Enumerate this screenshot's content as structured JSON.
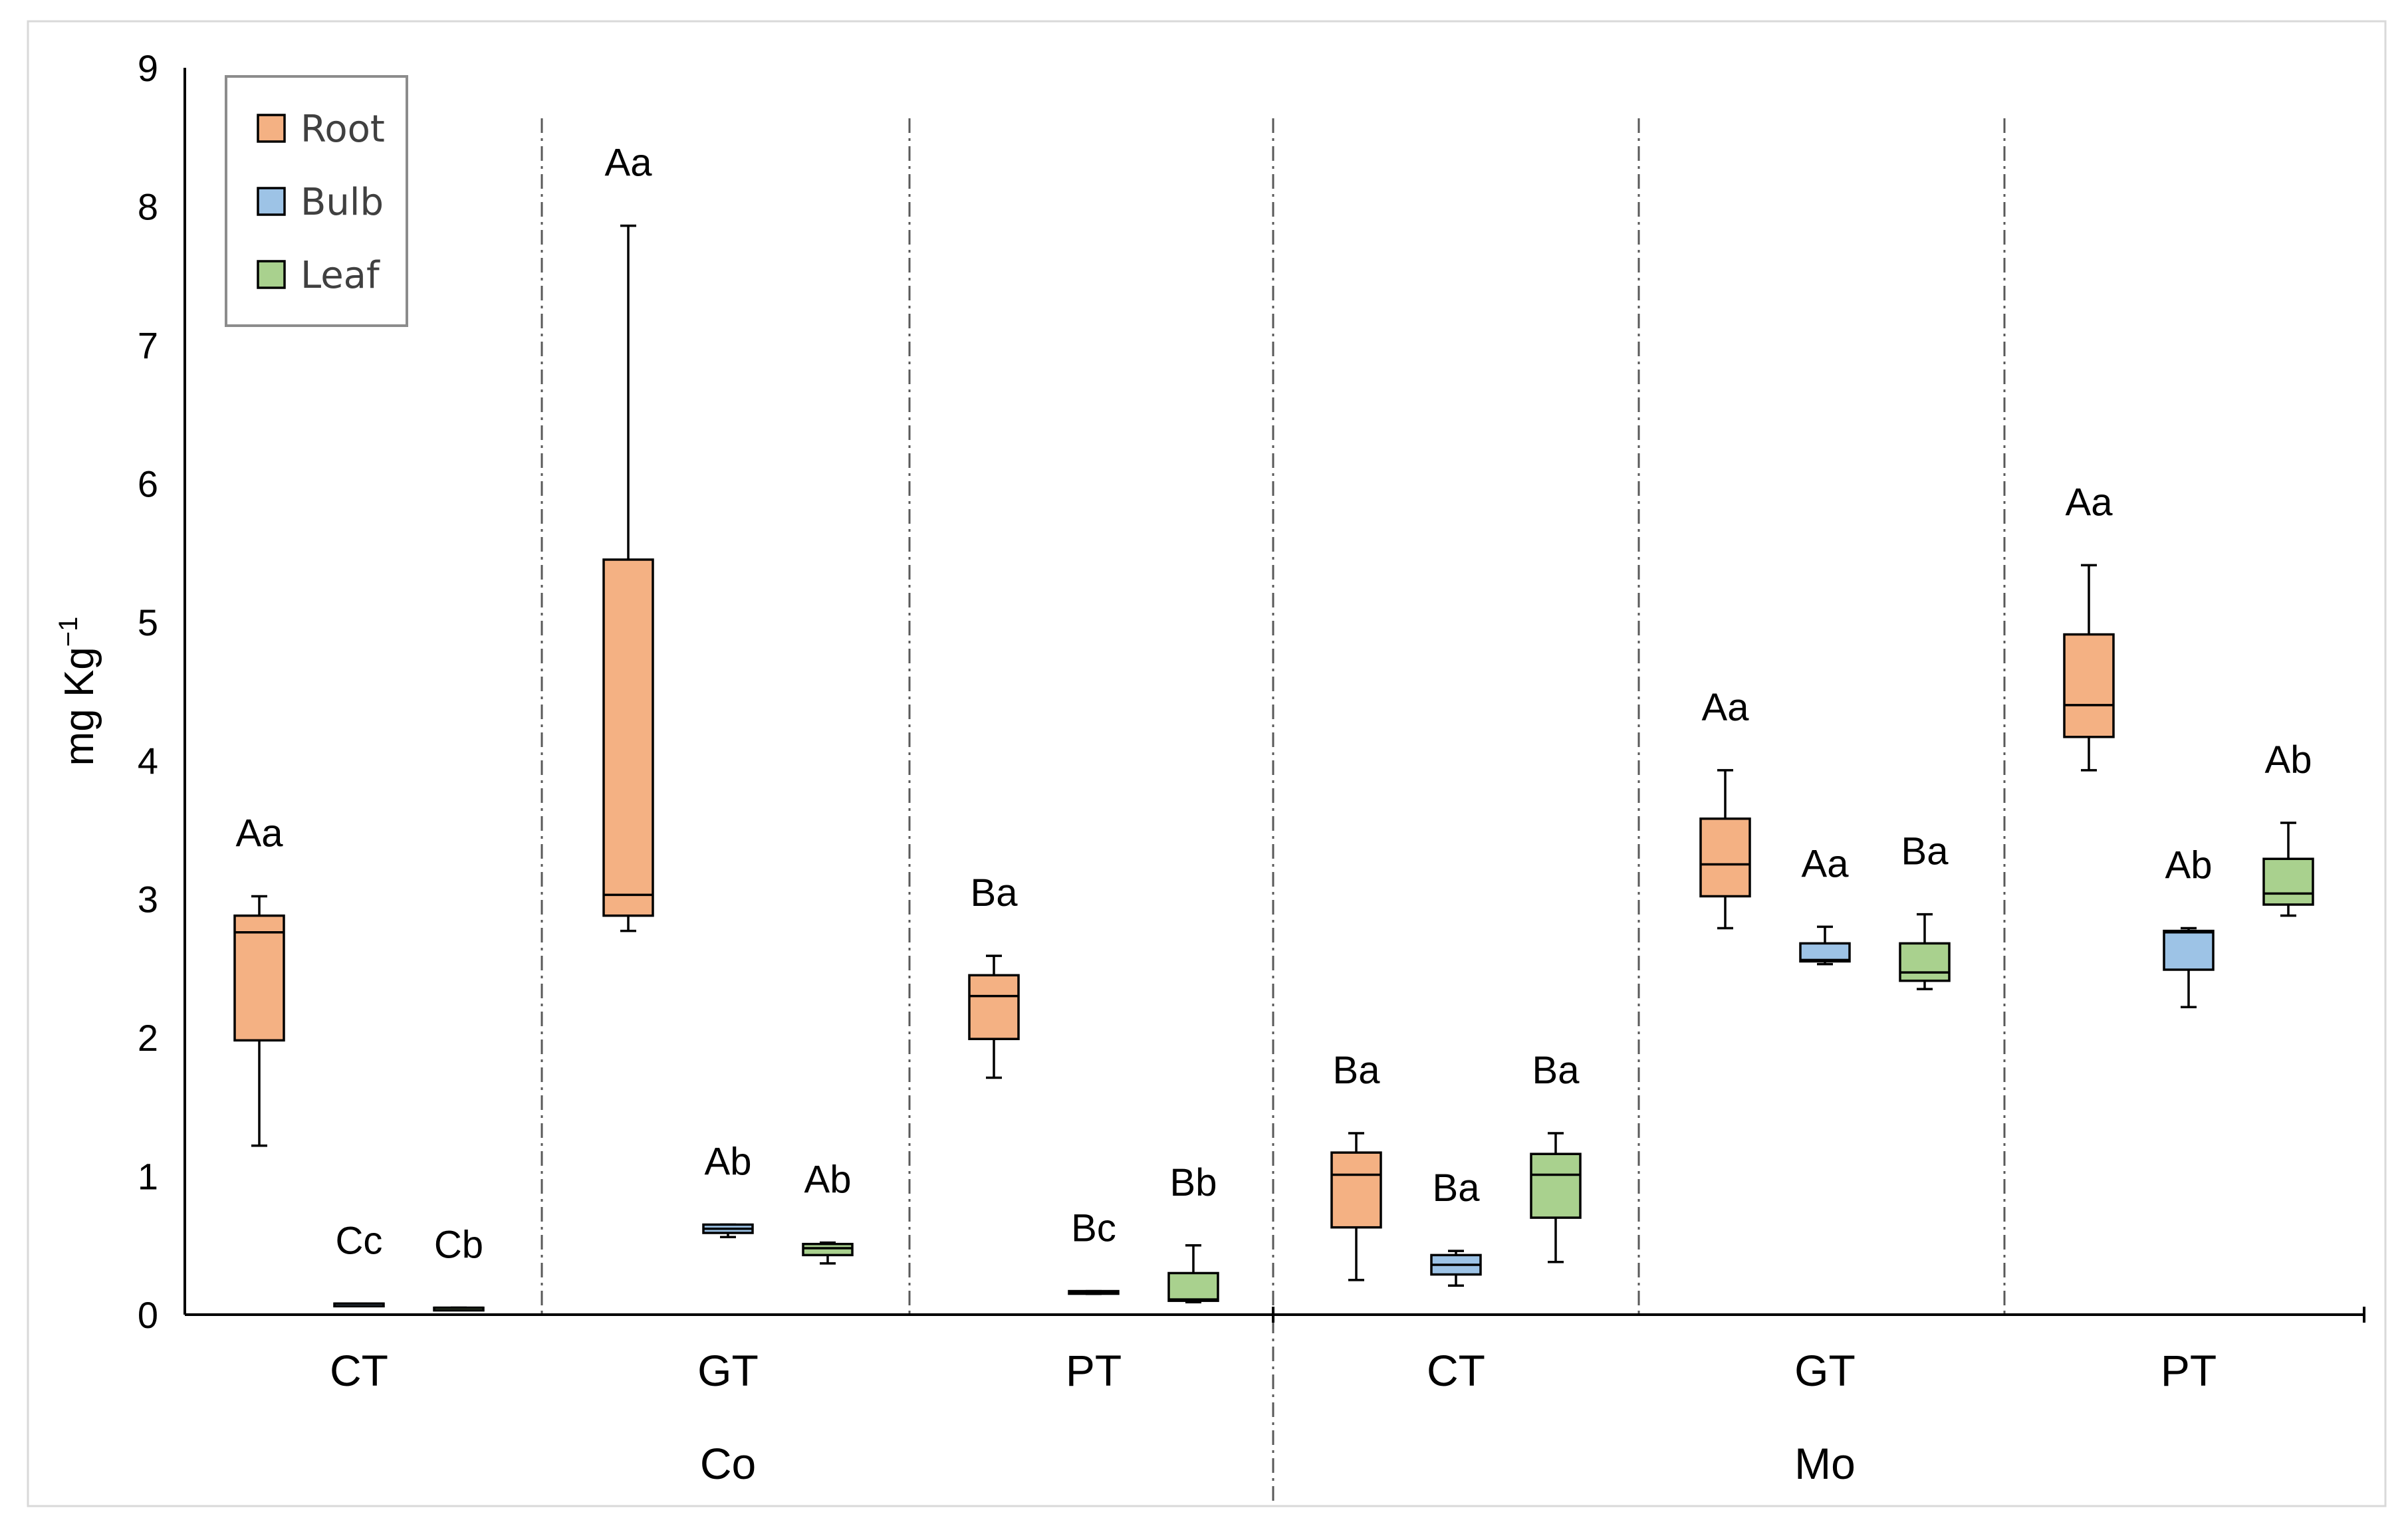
{
  "chart_data": {
    "type": "boxplot",
    "ylabel": "mg Kg",
    "ylabel_superscript": "−1",
    "ylim": [
      0,
      9
    ],
    "yticks": [
      "0",
      "1",
      "2",
      "3",
      "4",
      "5",
      "6",
      "7",
      "8",
      "9"
    ],
    "legend": {
      "position": "top-left",
      "entries": [
        {
          "name": "Root",
          "color": "#F4B183"
        },
        {
          "name": "Bulb",
          "color": "#9DC3E6"
        },
        {
          "name": "Leaf",
          "color": "#A9D18E"
        }
      ]
    },
    "group_labels": [
      "Co",
      "Mo"
    ],
    "treatments": [
      {
        "label": "CT",
        "group": "Co",
        "boxes": [
          {
            "series": "Root",
            "min": 1.22,
            "q1": 1.98,
            "median": 2.76,
            "q3": 2.88,
            "max": 3.02,
            "annotation": "Aa"
          },
          {
            "series": "Bulb",
            "min": 0.08,
            "q1": 0.08,
            "median": 0.08,
            "q3": 0.08,
            "max": 0.08,
            "annotation": "Cc"
          },
          {
            "series": "Leaf",
            "min": 0.05,
            "q1": 0.05,
            "median": 0.05,
            "q3": 0.05,
            "max": 0.05,
            "annotation": "Cb"
          }
        ]
      },
      {
        "label": "GT",
        "group": "Co",
        "boxes": [
          {
            "series": "Root",
            "min": 2.77,
            "q1": 2.88,
            "median": 3.03,
            "q3": 5.45,
            "max": 7.86,
            "annotation": "Aa"
          },
          {
            "series": "Bulb",
            "min": 0.56,
            "q1": 0.59,
            "median": 0.62,
            "q3": 0.65,
            "max": 0.65,
            "annotation": "Ab"
          },
          {
            "series": "Leaf",
            "min": 0.37,
            "q1": 0.43,
            "median": 0.48,
            "q3": 0.51,
            "max": 0.52,
            "annotation": "Ab"
          }
        ]
      },
      {
        "label": "PT",
        "group": "Co",
        "boxes": [
          {
            "series": "Root",
            "min": 1.71,
            "q1": 1.99,
            "median": 2.3,
            "q3": 2.45,
            "max": 2.59,
            "annotation": "Ba"
          },
          {
            "series": "Bulb",
            "min": 0.15,
            "q1": 0.16,
            "median": 0.16,
            "q3": 0.17,
            "max": 0.17,
            "annotation": "Bc"
          },
          {
            "series": "Leaf",
            "min": 0.09,
            "q1": 0.1,
            "median": 0.11,
            "q3": 0.3,
            "max": 0.5,
            "annotation": "Bb"
          }
        ]
      },
      {
        "label": "CT",
        "group": "Mo",
        "boxes": [
          {
            "series": "Root",
            "min": 0.25,
            "q1": 0.63,
            "median": 1.01,
            "q3": 1.17,
            "max": 1.31,
            "annotation": "Ba"
          },
          {
            "series": "Bulb",
            "min": 0.21,
            "q1": 0.29,
            "median": 0.36,
            "q3": 0.43,
            "max": 0.46,
            "annotation": "Ba"
          },
          {
            "series": "Leaf",
            "min": 0.38,
            "q1": 0.7,
            "median": 1.01,
            "q3": 1.16,
            "max": 1.31,
            "annotation": "Ba"
          }
        ]
      },
      {
        "label": "GT",
        "group": "Mo",
        "boxes": [
          {
            "series": "Root",
            "min": 2.79,
            "q1": 3.02,
            "median": 3.25,
            "q3": 3.58,
            "max": 3.93,
            "annotation": "Aa"
          },
          {
            "series": "Bulb",
            "min": 2.53,
            "q1": 2.55,
            "median": 2.56,
            "q3": 2.68,
            "max": 2.8,
            "annotation": "Aa"
          },
          {
            "series": "Leaf",
            "min": 2.35,
            "q1": 2.41,
            "median": 2.47,
            "q3": 2.68,
            "max": 2.89,
            "annotation": "Ba"
          }
        ]
      },
      {
        "label": "PT",
        "group": "Mo",
        "boxes": [
          {
            "series": "Root",
            "min": 3.93,
            "q1": 4.17,
            "median": 4.4,
            "q3": 4.91,
            "max": 5.41,
            "annotation": "Aa"
          },
          {
            "series": "Bulb",
            "min": 2.22,
            "q1": 2.49,
            "median": 2.76,
            "q3": 2.77,
            "max": 2.79,
            "annotation": "Ab"
          },
          {
            "series": "Leaf",
            "min": 2.88,
            "q1": 2.96,
            "median": 3.04,
            "q3": 3.29,
            "max": 3.55,
            "annotation": "Ab"
          }
        ]
      }
    ]
  }
}
